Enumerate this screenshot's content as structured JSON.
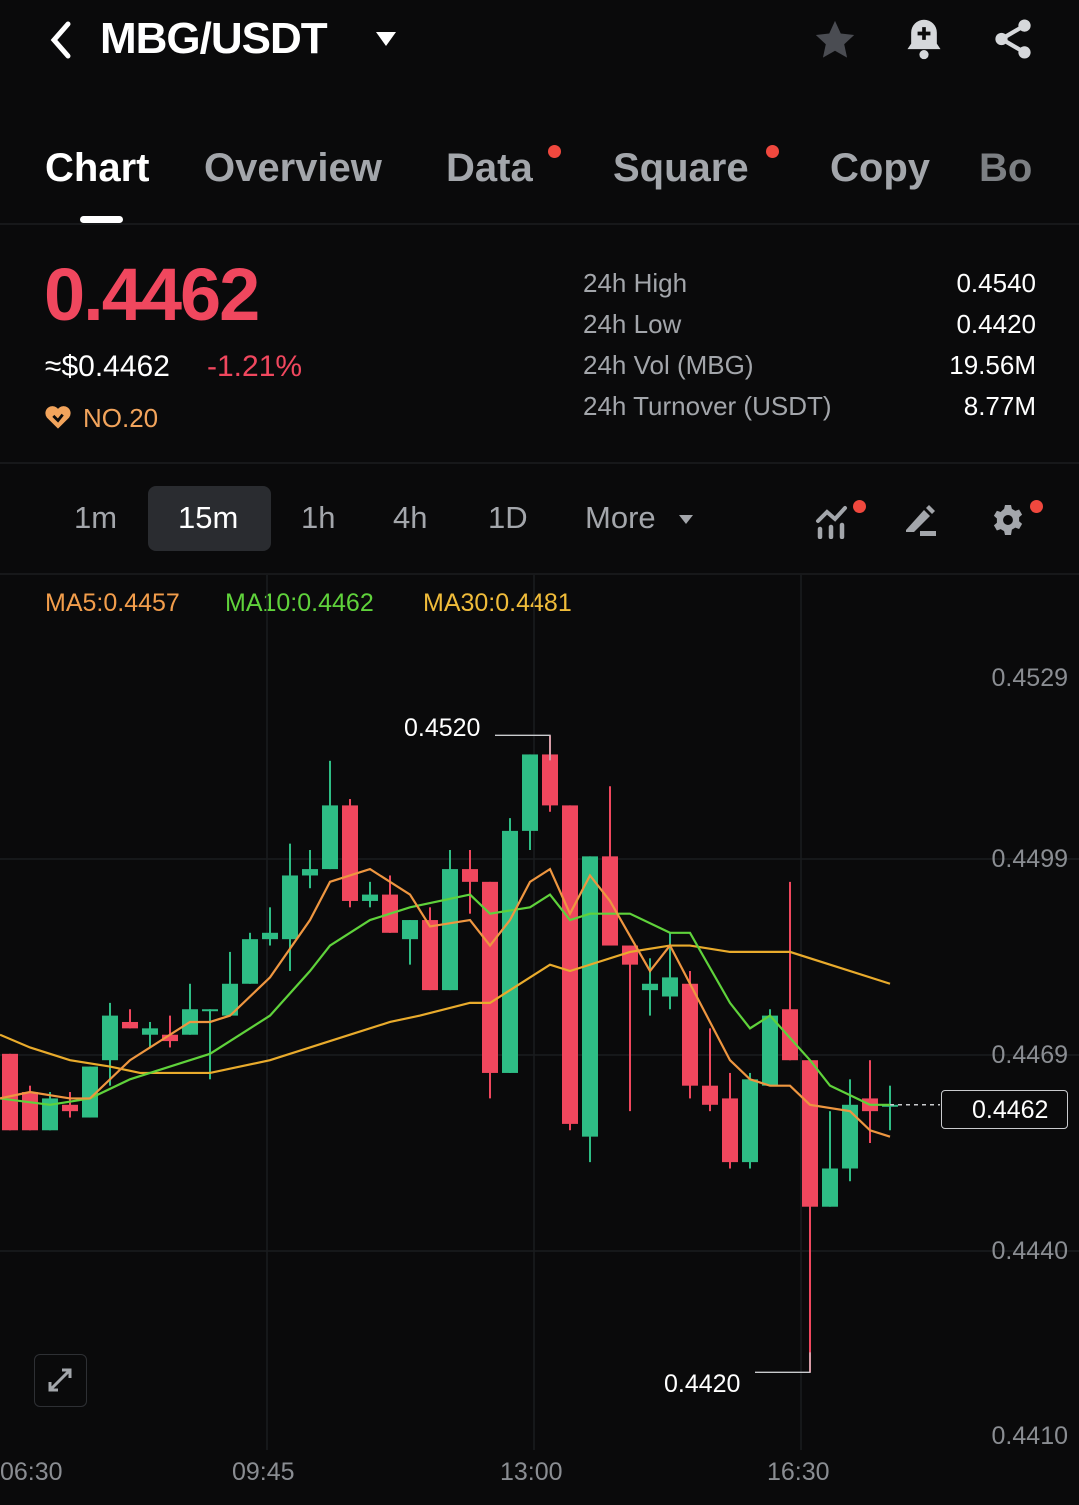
{
  "header": {
    "title": "MBG/USDT",
    "icons": [
      "back-chevron-icon",
      "caret-down-icon",
      "star-icon",
      "bell-plus-icon",
      "share-icon"
    ]
  },
  "tabs": [
    {
      "label": "Chart",
      "active": true
    },
    {
      "label": "Overview"
    },
    {
      "label": "Data",
      "dot": true
    },
    {
      "label": "Square",
      "dot": true
    },
    {
      "label": "Copy"
    },
    {
      "label": "Bo"
    }
  ],
  "ticker": {
    "price": "0.4462",
    "usd": "≈$0.4462",
    "change": "-1.21%",
    "rank": "NO.20"
  },
  "stats": [
    {
      "label": "24h High",
      "value": "0.4540"
    },
    {
      "label": "24h Low",
      "value": "0.4420"
    },
    {
      "label": "24h Vol (MBG)",
      "value": "19.56M"
    },
    {
      "label": "24h Turnover (USDT)",
      "value": "8.77M"
    }
  ],
  "intervals": {
    "items": [
      "1m",
      "15m",
      "1h",
      "4h",
      "1D"
    ],
    "selected": "15m",
    "more": "More"
  },
  "ma_legend": {
    "ma5": "MA5:0.4457",
    "ma10": "MA10:0.4462",
    "ma30": "MA30:0.4481"
  },
  "colors": {
    "up": "#2ebd85",
    "down": "#f0475e",
    "ma5": "#ee9640",
    "ma10": "#5fd23b",
    "ma30": "#e9ab2c",
    "accent": "#f0483e"
  },
  "chart_data": {
    "type": "candlestick",
    "interval": "15m",
    "y_ticks": [
      "0.4529",
      "0.4499",
      "0.4469",
      "0.4440",
      "0.4410"
    ],
    "x_ticks": [
      "06:30",
      "09:45",
      "13:00",
      "16:30"
    ],
    "ylim": [
      0.441,
      0.4529
    ],
    "last_price": "0.4462",
    "max_label": "0.4520",
    "min_label": "0.4420",
    "candles": [
      [
        0.447,
        0.447,
        0.4458,
        0.4458
      ],
      [
        0.4464,
        0.4465,
        0.4458,
        0.4458
      ],
      [
        0.4458,
        0.4464,
        0.4458,
        0.4463
      ],
      [
        0.4462,
        0.4464,
        0.446,
        0.4461
      ],
      [
        0.446,
        0.4468,
        0.446,
        0.4468
      ],
      [
        0.4469,
        0.4478,
        0.4465,
        0.4476
      ],
      [
        0.4475,
        0.4477,
        0.4474,
        0.4474
      ],
      [
        0.4473,
        0.4475,
        0.4471,
        0.4474
      ],
      [
        0.4473,
        0.4476,
        0.4471,
        0.4472
      ],
      [
        0.4473,
        0.4481,
        0.4473,
        0.4477
      ],
      [
        0.4477,
        0.4477,
        0.4466,
        0.4477
      ],
      [
        0.4476,
        0.4486,
        0.4476,
        0.4481
      ],
      [
        0.4481,
        0.4489,
        0.4481,
        0.4488
      ],
      [
        0.4488,
        0.4493,
        0.4487,
        0.4489
      ],
      [
        0.4488,
        0.4503,
        0.4483,
        0.4498
      ],
      [
        0.4498,
        0.4502,
        0.4496,
        0.4499
      ],
      [
        0.4499,
        0.4516,
        0.4499,
        0.4509
      ],
      [
        0.4509,
        0.451,
        0.4493,
        0.4494
      ],
      [
        0.4494,
        0.4497,
        0.4493,
        0.4495
      ],
      [
        0.4495,
        0.4498,
        0.4489,
        0.4489
      ],
      [
        0.4488,
        0.4491,
        0.4484,
        0.4491
      ],
      [
        0.4491,
        0.4493,
        0.448,
        0.448
      ],
      [
        0.448,
        0.4502,
        0.448,
        0.4499
      ],
      [
        0.4499,
        0.4502,
        0.4492,
        0.4497
      ],
      [
        0.4497,
        0.4497,
        0.4463,
        0.4467
      ],
      [
        0.4467,
        0.4507,
        0.4467,
        0.4505
      ],
      [
        0.4505,
        0.4517,
        0.4502,
        0.4517
      ],
      [
        0.4517,
        0.452,
        0.4508,
        0.4509
      ],
      [
        0.4509,
        0.4509,
        0.4458,
        0.4459
      ],
      [
        0.4457,
        0.4501,
        0.4453,
        0.4501
      ],
      [
        0.4501,
        0.4512,
        0.4487,
        0.4487
      ],
      [
        0.4487,
        0.4487,
        0.4461,
        0.4484
      ],
      [
        0.448,
        0.4485,
        0.4476,
        0.4481
      ],
      [
        0.4479,
        0.4489,
        0.4477,
        0.4482
      ],
      [
        0.4481,
        0.4483,
        0.4463,
        0.4465
      ],
      [
        0.4465,
        0.4474,
        0.4461,
        0.4462
      ],
      [
        0.4463,
        0.4467,
        0.4452,
        0.4453
      ],
      [
        0.4453,
        0.4467,
        0.4452,
        0.4466
      ],
      [
        0.4465,
        0.4477,
        0.4465,
        0.4476
      ],
      [
        0.4477,
        0.4497,
        0.4469,
        0.4469
      ],
      [
        0.4469,
        0.4469,
        0.442,
        0.4446
      ],
      [
        0.4446,
        0.4461,
        0.4446,
        0.4452
      ],
      [
        0.4452,
        0.4466,
        0.445,
        0.4462
      ],
      [
        0.4463,
        0.4469,
        0.4456,
        0.4461
      ],
      [
        0.4462,
        0.4465,
        0.4458,
        0.4462
      ]
    ],
    "ma5": [
      [
        -0.5,
        0.4463
      ],
      [
        1,
        0.4464
      ],
      [
        3,
        0.4463
      ],
      [
        4,
        0.4463
      ],
      [
        6,
        0.4469
      ],
      [
        9,
        0.4475
      ],
      [
        10,
        0.4475
      ],
      [
        11,
        0.4476
      ],
      [
        13,
        0.4482
      ],
      [
        15,
        0.4491
      ],
      [
        16,
        0.4497
      ],
      [
        18,
        0.4499
      ],
      [
        20,
        0.4495
      ],
      [
        21,
        0.449
      ],
      [
        23,
        0.4491
      ],
      [
        24,
        0.4487
      ],
      [
        25,
        0.4491
      ],
      [
        26,
        0.4497
      ],
      [
        27,
        0.4499
      ],
      [
        28,
        0.4492
      ],
      [
        29,
        0.4498
      ],
      [
        30,
        0.4494
      ],
      [
        32,
        0.4483
      ],
      [
        33,
        0.4487
      ],
      [
        35,
        0.4475
      ],
      [
        36,
        0.4469
      ],
      [
        37,
        0.4466
      ],
      [
        38,
        0.4465
      ],
      [
        39,
        0.4465
      ],
      [
        40,
        0.4462
      ],
      [
        42,
        0.4461
      ],
      [
        43,
        0.4458
      ],
      [
        44,
        0.4457
      ]
    ],
    "ma10": [
      [
        -0.5,
        0.4463
      ],
      [
        2,
        0.4462
      ],
      [
        4,
        0.4463
      ],
      [
        6,
        0.4466
      ],
      [
        9,
        0.4469
      ],
      [
        10,
        0.447
      ],
      [
        13,
        0.4476
      ],
      [
        15,
        0.4483
      ],
      [
        16,
        0.4487
      ],
      [
        18,
        0.4491
      ],
      [
        20,
        0.4493
      ],
      [
        23,
        0.4495
      ],
      [
        24,
        0.4492
      ],
      [
        26,
        0.4493
      ],
      [
        27,
        0.4495
      ],
      [
        28,
        0.4491
      ],
      [
        29,
        0.4492
      ],
      [
        31,
        0.4492
      ],
      [
        33,
        0.4489
      ],
      [
        34,
        0.4489
      ],
      [
        36,
        0.4478
      ],
      [
        37,
        0.4474
      ],
      [
        38,
        0.4476
      ],
      [
        40,
        0.4469
      ],
      [
        41,
        0.4465
      ],
      [
        43,
        0.4462
      ],
      [
        44,
        0.4462
      ]
    ],
    "ma30": [
      [
        -0.5,
        0.4473
      ],
      [
        1,
        0.4471
      ],
      [
        3,
        0.4469
      ],
      [
        5,
        0.4468
      ],
      [
        6.5,
        0.4467
      ],
      [
        10,
        0.4467
      ],
      [
        13,
        0.4469
      ],
      [
        17,
        0.4473
      ],
      [
        19,
        0.4475
      ],
      [
        20.5,
        0.4476
      ],
      [
        23,
        0.4478
      ],
      [
        24,
        0.4478
      ],
      [
        27,
        0.4484
      ],
      [
        28,
        0.4483
      ],
      [
        31,
        0.4486
      ],
      [
        33,
        0.4487
      ],
      [
        34,
        0.4487
      ],
      [
        36,
        0.4486
      ],
      [
        39,
        0.4486
      ],
      [
        44,
        0.4481
      ]
    ]
  }
}
